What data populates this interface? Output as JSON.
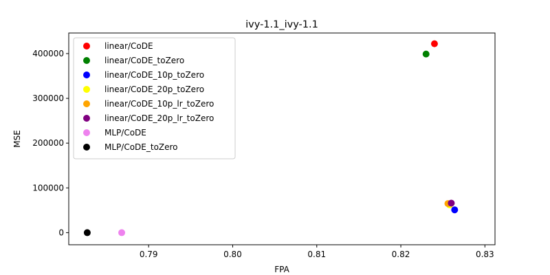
{
  "chart_data": {
    "type": "scatter",
    "title": "ivy-1.1_ivy-1.1",
    "xlabel": "FPA",
    "ylabel": "MSE",
    "xlim": [
      0.7805,
      0.8312
    ],
    "ylim": [
      -27000,
      446000
    ],
    "xticks": [
      0.79,
      0.8,
      0.81,
      0.82,
      0.83
    ],
    "xtick_labels": [
      "0.79",
      "0.80",
      "0.81",
      "0.82",
      "0.83"
    ],
    "yticks": [
      0,
      100000,
      200000,
      300000,
      400000
    ],
    "ytick_labels": [
      "0",
      "100000",
      "200000",
      "300000",
      "400000"
    ],
    "grid": false,
    "legend_position": "upper-left",
    "series": [
      {
        "name": "linear/CoDE",
        "color": "#ff0000",
        "points": [
          {
            "x": 0.824,
            "y": 422000
          }
        ]
      },
      {
        "name": "linear/CoDE_toZero",
        "color": "#008000",
        "points": [
          {
            "x": 0.823,
            "y": 399000
          }
        ]
      },
      {
        "name": "linear/CoDE_10p_toZero",
        "color": "#0000ff",
        "points": [
          {
            "x": 0.8264,
            "y": 51000
          }
        ]
      },
      {
        "name": "linear/CoDE_20p_toZero",
        "color": "#ffff00",
        "points": [
          {
            "x": 0.8258,
            "y": 62000
          }
        ]
      },
      {
        "name": "linear/CoDE_10p_lr_toZero",
        "color": "#ffa500",
        "points": [
          {
            "x": 0.8256,
            "y": 65000
          }
        ]
      },
      {
        "name": "linear/CoDE_20p_lr_toZero",
        "color": "#800080",
        "points": [
          {
            "x": 0.826,
            "y": 66000
          }
        ]
      },
      {
        "name": "MLP/CoDE",
        "color": "#ee82ee",
        "points": [
          {
            "x": 0.7868,
            "y": 0
          }
        ]
      },
      {
        "name": "MLP/CoDE_toZero",
        "color": "#000000",
        "points": [
          {
            "x": 0.7827,
            "y": 0
          }
        ]
      }
    ]
  }
}
